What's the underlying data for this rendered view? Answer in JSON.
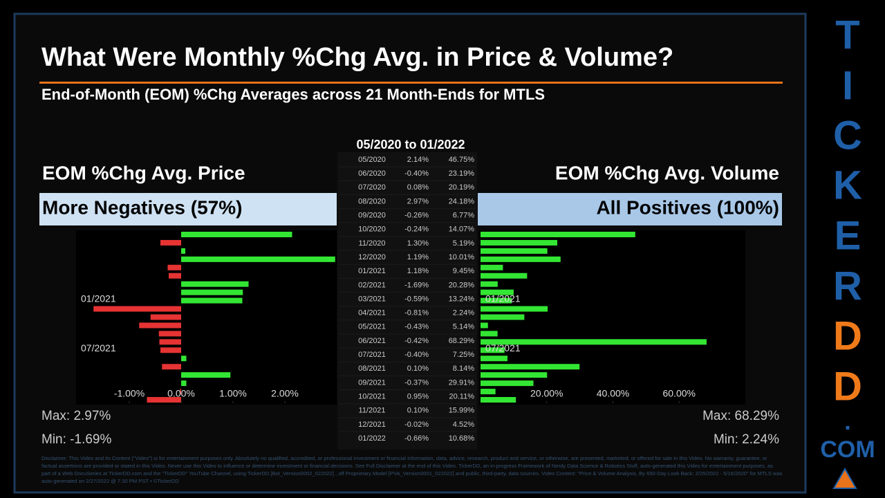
{
  "header": {
    "title": "What Were Monthly %Chg Avg. in Price & Volume?",
    "subtitle": "End-of-Month (EOM) %Chg Averages across 21 Month-Ends for MTLS"
  },
  "table": {
    "title": "05/2020 to 01/2022",
    "months": [
      "05/2020",
      "06/2020",
      "07/2020",
      "08/2020",
      "09/2020",
      "10/2020",
      "11/2020",
      "12/2020",
      "01/2021",
      "02/2021",
      "03/2021",
      "04/2021",
      "05/2021",
      "06/2021",
      "07/2021",
      "08/2021",
      "09/2021",
      "10/2021",
      "11/2021",
      "12/2021",
      "01/2022"
    ]
  },
  "chart_data": [
    {
      "type": "bar",
      "orientation": "horizontal",
      "title": "EOM %Chg Avg. Price",
      "subtitle": "More Negatives (57%)",
      "categories": [
        null,
        null,
        null,
        null,
        null,
        null,
        null,
        null,
        "01/2021",
        null,
        null,
        null,
        null,
        null,
        "07/2021",
        null,
        null,
        null,
        null,
        null,
        null
      ],
      "values": [
        2.14,
        -0.4,
        0.08,
        2.97,
        -0.26,
        -0.24,
        1.3,
        1.19,
        1.18,
        -1.69,
        -0.59,
        -0.81,
        -0.43,
        -0.42,
        -0.4,
        0.1,
        -0.37,
        0.95,
        0.1,
        -0.02,
        -0.66
      ],
      "value_labels": [
        "2.14%",
        "-0.40%",
        "0.08%",
        "2.97%",
        "-0.26%",
        "-0.24%",
        "1.30%",
        "1.19%",
        "1.18%",
        "-1.69%",
        "-0.59%",
        "-0.81%",
        "-0.43%",
        "-0.42%",
        "-0.40%",
        "0.10%",
        "-0.37%",
        "0.95%",
        "0.10%",
        "-0.02%",
        "-0.66%"
      ],
      "positive_color": "#33e633",
      "negative_color": "#e63333",
      "xlim": [
        -2.0,
        3.0
      ],
      "xticks": [
        {
          "value": -1,
          "label": "-1.00%"
        },
        {
          "value": 0,
          "label": "0.00%"
        },
        {
          "value": 1,
          "label": "1.00%"
        },
        {
          "value": 2,
          "label": "2.00%"
        }
      ],
      "annotations": {
        "max": "Max: 2.97%",
        "min": "Min: -1.69%"
      }
    },
    {
      "type": "bar",
      "orientation": "horizontal",
      "title": "EOM %Chg Avg. Volume",
      "subtitle": "All Positives (100%)",
      "categories": [
        null,
        null,
        null,
        null,
        null,
        null,
        null,
        null,
        "01/2021",
        null,
        null,
        null,
        null,
        null,
        "07/2021",
        null,
        null,
        null,
        null,
        null,
        null
      ],
      "values": [
        46.75,
        23.19,
        20.19,
        24.18,
        6.77,
        14.07,
        5.19,
        10.01,
        9.45,
        20.28,
        13.24,
        2.24,
        5.14,
        68.29,
        7.25,
        8.14,
        29.91,
        20.11,
        15.99,
        4.52,
        10.68
      ],
      "value_labels": [
        "46.75%",
        "23.19%",
        "20.19%",
        "24.18%",
        "6.77%",
        "14.07%",
        "5.19%",
        "10.01%",
        "9.45%",
        "20.28%",
        "13.24%",
        "2.24%",
        "5.14%",
        "68.29%",
        "7.25%",
        "8.14%",
        "29.91%",
        "20.11%",
        "15.99%",
        "4.52%",
        "10.68%"
      ],
      "color": "#33e633",
      "xlim": [
        0,
        80
      ],
      "xticks": [
        {
          "value": 20,
          "label": "20.00%"
        },
        {
          "value": 40,
          "label": "40.00%"
        },
        {
          "value": 60,
          "label": "60.00%"
        }
      ],
      "annotations": {
        "max": "Max: 68.29%",
        "min": "Min: 2.24%"
      }
    }
  ],
  "brand": [
    "T",
    "I",
    "C",
    "K",
    "E",
    "R",
    "D",
    "D",
    ".",
    "COM"
  ],
  "disclaimer": "Disclaimer: This Video and its Content (\"Video\") is for entertainment purposes only. Absolutely no qualified, accredited, or professional investment or financial information, data, advice, research, product and service, or otherwise, are presented, marketed, or offered for sale in this Video. No warranty, guarantee, or factual assertions are provided or stated in this Video. Never use this Video to influence or determine investment or financial decisions. See Full Disclaimer at the end of this Video. TickerDD, an in-progress Framework of Nerdy Data Science & Robotics Stuff, auto-generated this Video for entertainment purposes, as part of a Web DocuSeries at TickerDD.com and the \"TickerDD\" YouTube Channel, using TickerDD [Bot_Version0002_022022] , off Proprietary Model [PVA_Version0001_022022] and public, third-party, data sources. Video Content: \"Price & Volume Analysis, By 650-Day Look Back: 2/25/2022 - 5/16/2020\" for MTLS was auto-generated on 2/27/2022 @ 7:30 PM PST • ©TickerDD"
}
